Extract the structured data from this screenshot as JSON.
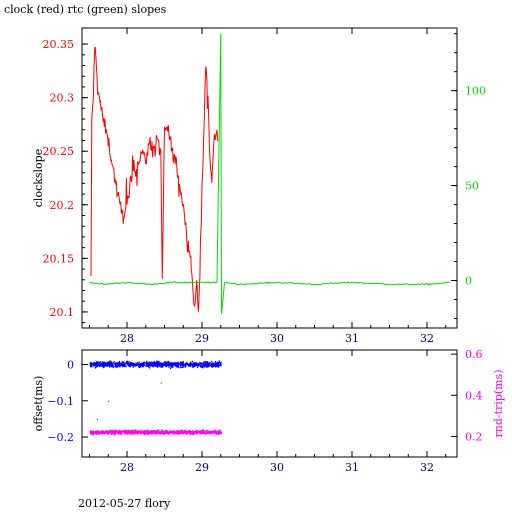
{
  "title": "clock (red) rtc (green) slopes",
  "footer": "2012-05-27 flory",
  "colors": {
    "clock": "#ff0000",
    "rtc": "#00dd00",
    "offset": "#0000ff",
    "rndtrip": "#ff00ff",
    "axis_x": "#000080"
  },
  "chart_data": [
    {
      "type": "line",
      "title": "clock (red) rtc (green) slopes",
      "xlabel": "",
      "ylabel": "clockslope",
      "y2label": "",
      "xlim": [
        27.4,
        32.4
      ],
      "ylim": [
        20.085,
        20.365
      ],
      "y2lim": [
        -25,
        133
      ],
      "x_ticks": [
        "28",
        "29",
        "30",
        "31",
        "32"
      ],
      "y_ticks": [
        "20.1",
        "20.15",
        "20.2",
        "20.25",
        "20.3",
        "20.35"
      ],
      "y2_ticks": [
        "0",
        "50",
        "100"
      ],
      "grid": false,
      "series": [
        {
          "axis": "left",
          "color": "#ff0000",
          "points": [
            [
              27.52,
              20.13
            ],
            [
              27.53,
              20.28
            ],
            [
              27.55,
              20.3
            ],
            [
              27.57,
              20.35
            ],
            [
              27.6,
              20.32
            ],
            [
              27.63,
              20.3
            ],
            [
              27.68,
              20.28
            ],
            [
              27.75,
              20.26
            ],
            [
              27.8,
              20.24
            ],
            [
              27.85,
              20.22
            ],
            [
              27.9,
              20.2
            ],
            [
              27.95,
              20.19
            ],
            [
              28.0,
              20.2
            ],
            [
              28.05,
              20.22
            ],
            [
              28.1,
              20.23
            ],
            [
              28.15,
              20.24
            ],
            [
              28.2,
              20.25
            ],
            [
              28.25,
              20.24
            ],
            [
              28.3,
              20.26
            ],
            [
              28.35,
              20.25
            ],
            [
              28.4,
              20.26
            ],
            [
              28.45,
              20.25
            ],
            [
              28.47,
              20.13
            ],
            [
              28.5,
              20.27
            ],
            [
              28.55,
              20.27
            ],
            [
              28.6,
              20.25
            ],
            [
              28.65,
              20.24
            ],
            [
              28.7,
              20.22
            ],
            [
              28.75,
              20.2
            ],
            [
              28.8,
              20.17
            ],
            [
              28.85,
              20.15
            ],
            [
              28.88,
              20.12
            ],
            [
              28.9,
              20.1
            ],
            [
              28.93,
              20.13
            ],
            [
              28.95,
              20.1
            ],
            [
              28.98,
              20.15
            ],
            [
              29.0,
              20.21
            ],
            [
              29.03,
              20.28
            ],
            [
              29.05,
              20.33
            ],
            [
              29.08,
              20.3
            ],
            [
              29.1,
              20.25
            ],
            [
              29.13,
              20.22
            ],
            [
              29.16,
              20.26
            ],
            [
              29.2,
              20.27
            ],
            [
              29.22,
              20.25
            ]
          ]
        },
        {
          "axis": "right",
          "color": "#00dd00",
          "points": [
            [
              27.5,
              -1
            ],
            [
              27.7,
              -2
            ],
            [
              28.0,
              -1
            ],
            [
              28.3,
              -2
            ],
            [
              28.6,
              -1
            ],
            [
              28.9,
              -1
            ],
            [
              29.0,
              -1
            ],
            [
              29.2,
              -1
            ],
            [
              29.25,
              130
            ],
            [
              29.26,
              -18
            ],
            [
              29.3,
              -1
            ],
            [
              29.5,
              -2
            ],
            [
              30.0,
              -1
            ],
            [
              30.5,
              -2
            ],
            [
              31.0,
              -1
            ],
            [
              31.5,
              -2
            ],
            [
              32.0,
              -2
            ],
            [
              32.3,
              -1
            ]
          ]
        }
      ]
    },
    {
      "type": "scatter",
      "xlabel": "",
      "ylabel": "offset(ms)",
      "y2label": "rnd-trip(ms)",
      "xlim": [
        27.4,
        32.4
      ],
      "ylim": [
        -0.255,
        0.04
      ],
      "y2lim": [
        0.1,
        0.62
      ],
      "x_ticks": [
        "28",
        "29",
        "30",
        "31",
        "32"
      ],
      "y_ticks": [
        "0",
        "-0.1",
        "-0.2"
      ],
      "y2_ticks": [
        "0.2",
        "0.4",
        "0.6"
      ],
      "grid": false,
      "series": [
        {
          "axis": "left",
          "color": "#0000ff",
          "x_range": [
            27.5,
            29.25
          ],
          "y_center": 0.0,
          "y_spread": 0.012,
          "outliers": [
            [
              27.75,
              -0.1
            ],
            [
              28.45,
              -0.05
            ],
            [
              27.6,
              -0.15
            ],
            [
              29.05,
              -0.18
            ]
          ]
        },
        {
          "axis": "right",
          "color": "#ff00ff",
          "x_range": [
            27.5,
            29.25
          ],
          "y_center": 0.22,
          "y_spread": 0.015
        }
      ]
    }
  ]
}
